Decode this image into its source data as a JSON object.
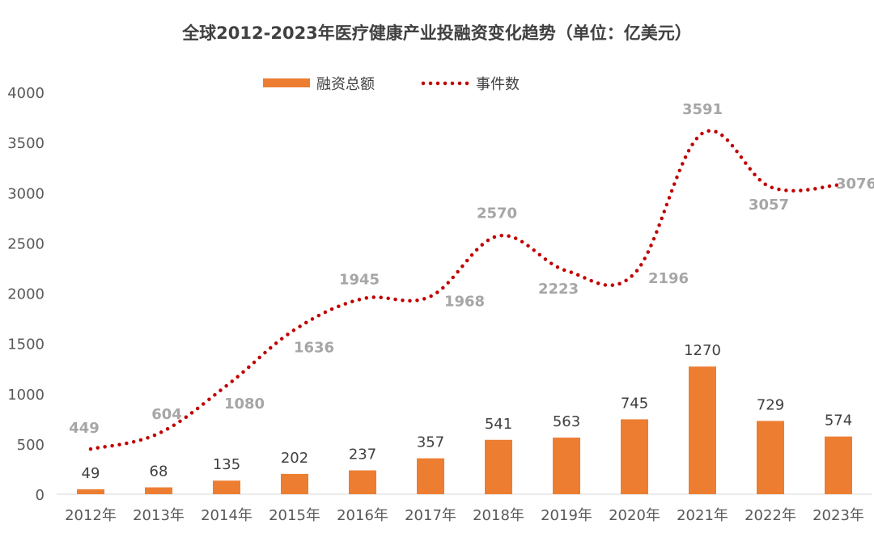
{
  "chart_data": {
    "type": "bar",
    "title": "全球2012-2023年医疗健康产业投融资变化趋势（单位：亿美元）",
    "categories": [
      "2012年",
      "2013年",
      "2014年",
      "2015年",
      "2016年",
      "2017年",
      "2018年",
      "2019年",
      "2020年",
      "2021年",
      "2022年",
      "2023年"
    ],
    "ylim": [
      0,
      4000
    ],
    "yticks": [
      "0",
      "500",
      "1000",
      "1500",
      "2000",
      "2500",
      "3000",
      "3500",
      "4000"
    ],
    "grid": false,
    "legend_position": "top-center",
    "series": [
      {
        "name": "融资总额",
        "type": "bar",
        "color": "#ED7D31",
        "values": [
          49,
          68,
          135,
          202,
          237,
          357,
          541,
          563,
          745,
          1270,
          729,
          574
        ],
        "labels": [
          "49",
          "68",
          "135",
          "202",
          "237",
          "357",
          "541",
          "563",
          "745",
          "1270",
          "729",
          "574"
        ]
      },
      {
        "name": "事件数",
        "type": "line",
        "style": "dotted",
        "color": "#C00000",
        "values": [
          449,
          604,
          1080,
          1636,
          1945,
          1968,
          2570,
          2223,
          2196,
          3591,
          3057,
          3076
        ],
        "labels": [
          "449",
          "604",
          "1080",
          "1636",
          "1945",
          "1968",
          "2570",
          "2223",
          "2196",
          "3591",
          "3057",
          "3076"
        ]
      }
    ]
  }
}
